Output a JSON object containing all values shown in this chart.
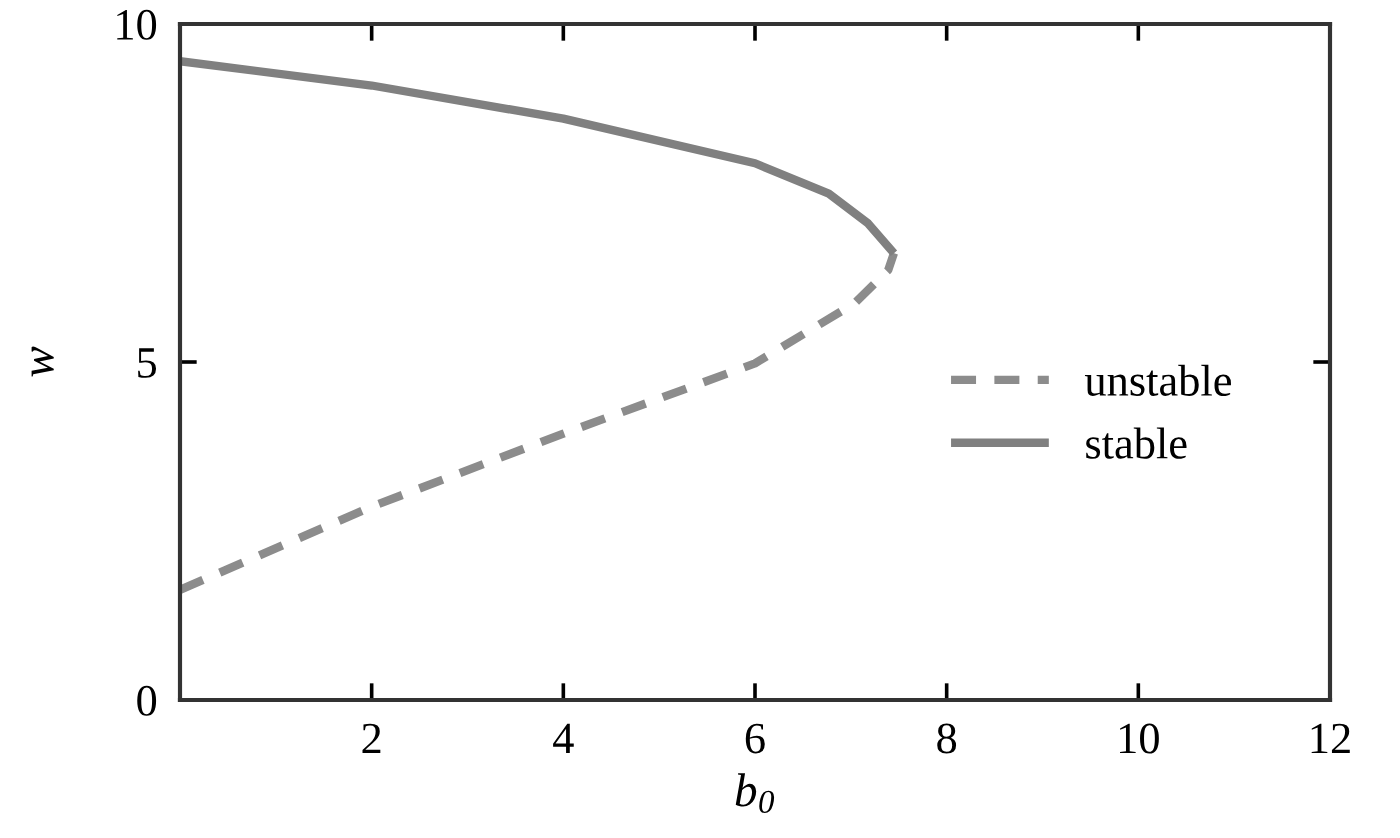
{
  "chart_data": {
    "type": "line",
    "xlabel": "b$_{0}$",
    "ylabel": "w",
    "series": [
      {
        "name": "unstable",
        "color": "#8c8c8c",
        "line_style": "dashed",
        "x": [
          0,
          2,
          4,
          6,
          7.04,
          7.39,
          7.45
        ],
        "values": [
          1.63,
          2.86,
          3.94,
          4.98,
          5.87,
          6.36,
          6.61
        ]
      },
      {
        "name": "stable",
        "color": "#808080",
        "line_style": "solid",
        "x": [
          7.45,
          7.18,
          6.77,
          6,
          4,
          2,
          0
        ],
        "values": [
          6.61,
          7.05,
          7.49,
          7.94,
          8.6,
          9.09,
          9.45
        ]
      }
    ],
    "xlim": [
      0,
      12
    ],
    "xticks": [
      {
        "value": 0,
        "label": null
      },
      2,
      4,
      6,
      8,
      10,
      12
    ],
    "ylim": [
      0,
      10
    ],
    "yticks": [
      0,
      5,
      10
    ],
    "grid": false,
    "legend": "right",
    "marker": "none"
  }
}
